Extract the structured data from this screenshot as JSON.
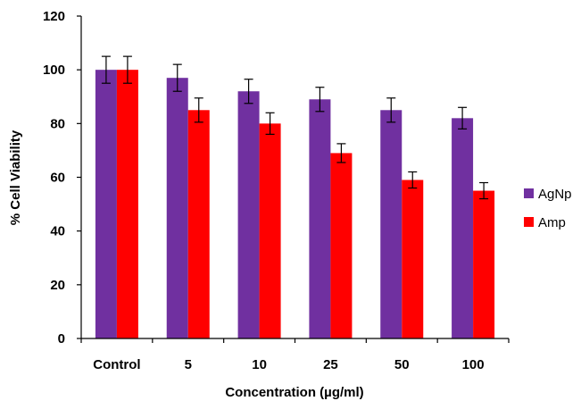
{
  "chart_data": {
    "type": "bar",
    "title": "",
    "xlabel": "Concentration (µg/ml)",
    "ylabel": "% Cell Viability",
    "categories": [
      "Control",
      "5",
      "10",
      "25",
      "50",
      "100"
    ],
    "ylim": [
      0,
      120
    ],
    "yticks": [
      0,
      20,
      40,
      60,
      80,
      100,
      120
    ],
    "grid": false,
    "legend_position": "right",
    "series": [
      {
        "name": "AgNp",
        "color": "#7030A0",
        "values": [
          100,
          97,
          92,
          89,
          85,
          82
        ],
        "errors": [
          5,
          5,
          4.5,
          4.5,
          4.5,
          4
        ]
      },
      {
        "name": "Amp",
        "color": "#FF0000",
        "values": [
          100,
          85,
          80,
          69,
          59,
          55
        ],
        "errors": [
          5,
          4.5,
          4,
          3.5,
          3,
          3
        ]
      }
    ]
  }
}
